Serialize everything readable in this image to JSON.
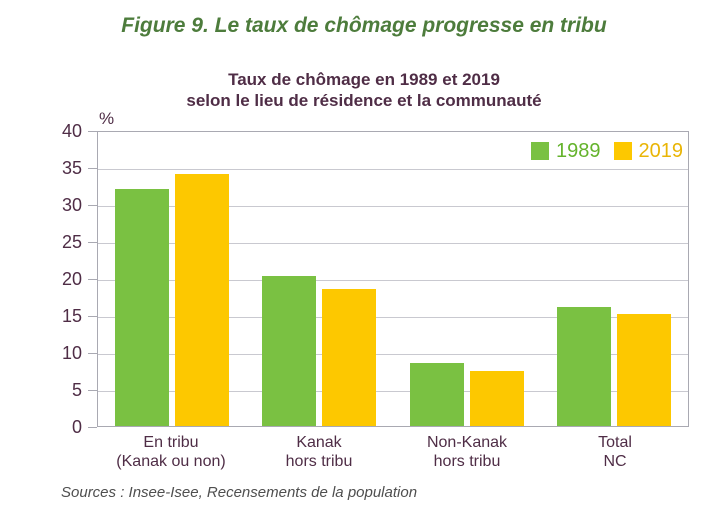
{
  "figure": {
    "title": "Figure 9. Le taux de chômage progresse en tribu",
    "source": "Sources : Insee-Isee, Recensements de la population"
  },
  "chart_data": {
    "type": "bar",
    "title": "Taux de chômage en 1989 et 2019 selon le lieu de résidence et la communauté",
    "title_lines": [
      "Taux de chômage en 1989 et 2019",
      "selon le lieu de résidence et la communauté"
    ],
    "unit_label": "%",
    "categories": [
      "En tribu (Kanak ou non)",
      "Kanak hors tribu",
      "Non-Kanak hors tribu",
      "Total NC"
    ],
    "category_lines": [
      [
        "En tribu",
        "(Kanak ou non)"
      ],
      [
        "Kanak",
        "hors tribu"
      ],
      [
        "Non-Kanak",
        "hors tribu"
      ],
      [
        "Total",
        "NC"
      ]
    ],
    "category_keys": [
      "en-tribu",
      "kanak-hors-tribu",
      "non-kanak-hors-tribu",
      "total-nc"
    ],
    "series": [
      {
        "name": "1989",
        "color": "#7AC142",
        "label_color": "#64B32C",
        "values": [
          32.3,
          20.4,
          8.6,
          16.2
        ]
      },
      {
        "name": "2019",
        "color": "#FDC800",
        "label_color": "#E9B506",
        "values": [
          34.3,
          18.6,
          7.5,
          15.2
        ]
      }
    ],
    "ylim": [
      0,
      40
    ],
    "ytick_step": 5,
    "yticks": [
      0,
      5,
      10,
      15,
      20,
      25,
      30,
      35,
      40
    ],
    "grid": "horizontal",
    "legend_position": "top-right"
  },
  "colors": {
    "title_green": "#4D7C3C",
    "text_maroon": "#4F2D46",
    "grid_gray": "#C9C9D0",
    "frame_gray": "#A9A9B2",
    "source_gray": "#4F4F4F"
  }
}
